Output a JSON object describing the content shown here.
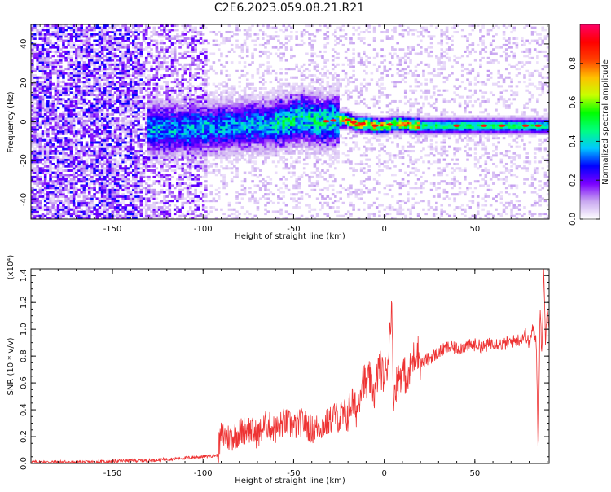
{
  "title": "C2E6.2023.059.08.21.R21",
  "chart_data": [
    {
      "type": "heatmap",
      "title": "C2E6.2023.059.08.21.R21",
      "xlabel": "Height of straight line (km)",
      "ylabel": "Frequency (Hz)",
      "xlim": [
        -195,
        91
      ],
      "ylim": [
        -50,
        50
      ],
      "xticks": [
        -150,
        -100,
        -50,
        0,
        50
      ],
      "yticks": [
        -40,
        -20,
        0,
        20,
        40
      ],
      "colorbar": {
        "label": "Normalized spectral amplitude",
        "range": [
          0,
          1
        ],
        "ticks": [
          0.0,
          0.2,
          0.4,
          0.6,
          0.8
        ],
        "colors": [
          "#ffffff",
          "#c9a8f0",
          "#7a00ff",
          "#0000ff",
          "#00c8ff",
          "#00ff80",
          "#00ff00",
          "#c8ff00",
          "#ffc000",
          "#ff4000",
          "#ff0000",
          "#ff0066"
        ]
      },
      "ridge": {
        "x": [
          -135,
          -120,
          -100,
          -80,
          -60,
          -45,
          -35,
          -25,
          -20,
          -15,
          -10,
          -5,
          0,
          5,
          10,
          20,
          40,
          60,
          80,
          90
        ],
        "y": [
          -3,
          -4,
          -3,
          -2,
          -1,
          2,
          0,
          1,
          1,
          -1,
          -1,
          -2,
          -2,
          -1,
          -1,
          -2,
          -2,
          -2,
          -2,
          -2
        ]
      }
    },
    {
      "type": "line",
      "xlabel": "Height of straight line (km)",
      "ylabel": "SNR (10 * v/v)",
      "y_multiplier": "(x10⁴)",
      "xlim": [
        -195,
        91
      ],
      "ylim": [
        0,
        1.45
      ],
      "xticks": [
        -150,
        -100,
        -50,
        0,
        50
      ],
      "yticks": [
        0.0,
        0.2,
        0.4,
        0.6,
        0.8,
        1.0,
        1.2,
        1.4
      ],
      "color": "#ee3333",
      "series": [
        {
          "x": [
            -195,
            -180,
            -160,
            -140,
            -130,
            -120,
            -110,
            -100,
            -92,
            -90,
            -85,
            -80,
            -75,
            -70,
            -65,
            -60,
            -55,
            -50,
            -45,
            -40,
            -35,
            -30,
            -28,
            -25,
            -20,
            -18,
            -15,
            -12,
            -10,
            -8,
            -5,
            -3,
            0,
            2,
            4,
            5,
            7,
            10,
            13,
            15,
            18,
            20,
            25,
            30,
            35,
            40,
            45,
            50,
            55,
            60,
            65,
            70,
            75,
            78,
            80,
            82,
            84,
            85,
            86,
            87,
            88,
            89,
            90,
            91
          ],
          "y": [
            0.01,
            0.01,
            0.01,
            0.02,
            0.02,
            0.03,
            0.04,
            0.05,
            0.06,
            0.2,
            0.18,
            0.22,
            0.25,
            0.2,
            0.28,
            0.24,
            0.3,
            0.26,
            0.3,
            0.24,
            0.27,
            0.3,
            0.36,
            0.32,
            0.35,
            0.45,
            0.38,
            0.65,
            0.55,
            0.62,
            0.5,
            0.72,
            0.62,
            0.75,
            1.19,
            0.5,
            0.6,
            0.68,
            0.6,
            0.72,
            0.85,
            0.74,
            0.78,
            0.82,
            0.86,
            0.85,
            0.87,
            0.88,
            0.86,
            0.9,
            0.88,
            0.9,
            0.92,
            0.96,
            0.88,
            1.0,
            0.9,
            0.05,
            1.15,
            0.8,
            1.45,
            0.9,
            1.2,
            1.0
          ]
        }
      ]
    }
  ]
}
